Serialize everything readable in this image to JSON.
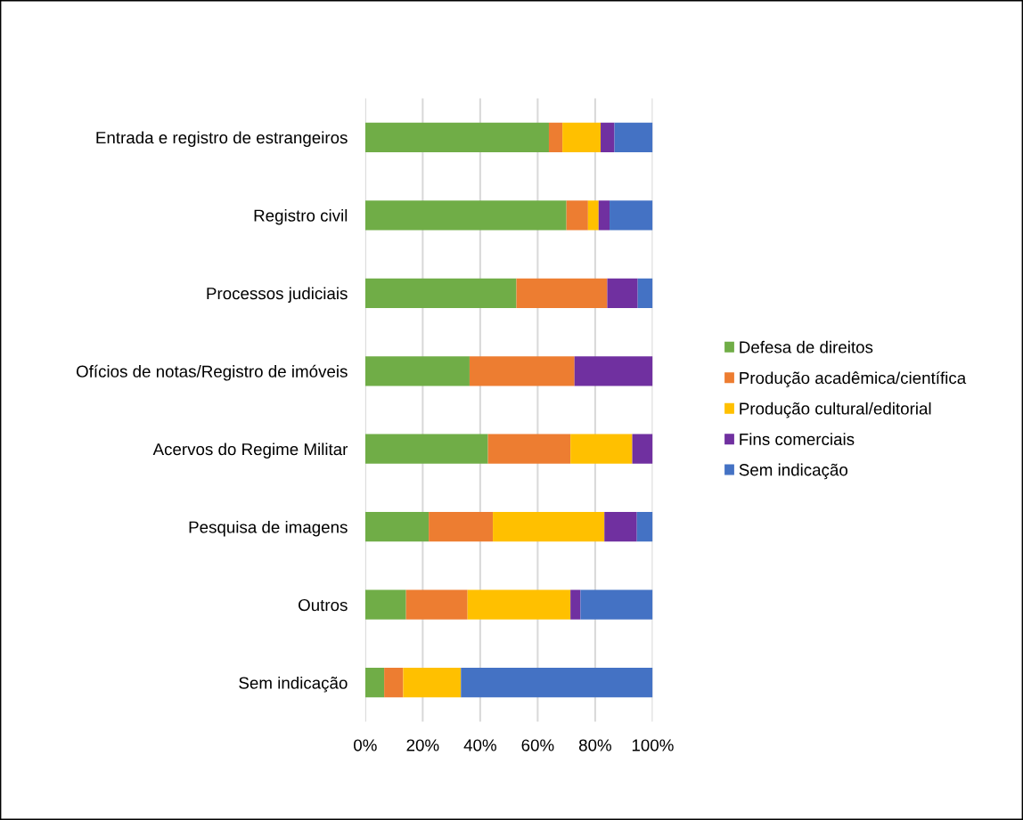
{
  "chart_data": {
    "type": "bar",
    "orientation": "horizontal",
    "stacked": true,
    "categories": [
      "Entrada e registro de estrangeiros",
      "Registro civil",
      "Processos judiciais",
      "Ofícios de notas/Registro de imóveis",
      "Acervos do Regime Militar",
      "Pesquisa de imagens",
      "Outros",
      "Sem indicação"
    ],
    "series": [
      {
        "name": "Defesa de direitos",
        "color": "#70ad47",
        "values": [
          63.9,
          70.0,
          52.6,
          36.3,
          42.7,
          22.1,
          14.2,
          6.6
        ]
      },
      {
        "name": "Produção acadêmica/científica",
        "color": "#ed7d31",
        "values": [
          4.7,
          7.5,
          31.6,
          36.5,
          28.7,
          22.3,
          21.4,
          6.6
        ]
      },
      {
        "name": "Produção cultural/editorial",
        "color": "#ffc000",
        "values": [
          13.3,
          3.7,
          0,
          0,
          21.5,
          38.8,
          35.8,
          20.1
        ]
      },
      {
        "name": "Fins comerciais",
        "color": "#7030a0",
        "values": [
          4.8,
          3.8,
          10.6,
          27.2,
          7.1,
          11.3,
          3.5,
          0
        ]
      },
      {
        "name": "Sem indicação",
        "color": "#4472c4",
        "values": [
          13.3,
          15.0,
          5.2,
          0,
          0,
          5.5,
          25.1,
          66.7
        ]
      }
    ],
    "xlim": [
      0,
      100
    ],
    "xticks": [
      {
        "value": 0,
        "label": "0%"
      },
      {
        "value": 20,
        "label": "20%"
      },
      {
        "value": 40,
        "label": "40%"
      },
      {
        "value": 60,
        "label": "60%"
      },
      {
        "value": 80,
        "label": "80%"
      },
      {
        "value": 100,
        "label": "100%"
      }
    ],
    "grid": "x",
    "legend": "right"
  }
}
